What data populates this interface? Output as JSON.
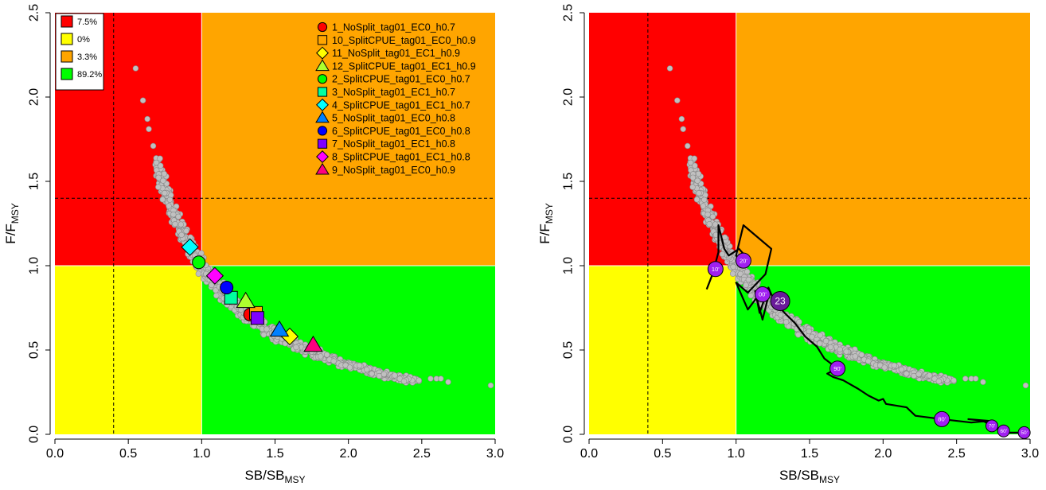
{
  "chart_data": [
    {
      "type": "scatter",
      "panel": "left",
      "xlabel": "SB/SB",
      "xlabel_sub": "MSY",
      "ylabel": "F/F",
      "ylabel_sub": "MSY",
      "xlim": [
        0,
        3.0
      ],
      "ylim": [
        0,
        2.5
      ],
      "xticks": [
        "0.0",
        "0.5",
        "1.0",
        "1.5",
        "2.0",
        "2.5",
        "3.0"
      ],
      "yticks": [
        "0.0",
        "0.5",
        "1.0",
        "1.5",
        "2.0",
        "2.5"
      ],
      "zones": [
        {
          "color": "#ff0000",
          "x": [
            0,
            1
          ],
          "y": [
            1,
            2.5
          ]
        },
        {
          "color": "#ffa500",
          "x": [
            1,
            3
          ],
          "y": [
            1,
            2.5
          ]
        },
        {
          "color": "#ffff00",
          "x": [
            0,
            1
          ],
          "y": [
            0,
            1
          ]
        },
        {
          "color": "#00ff00",
          "x": [
            1,
            3
          ],
          "y": [
            0,
            1
          ]
        }
      ],
      "reference_lines": {
        "vertical": 0.4,
        "horizontal": 1.4
      },
      "zone_legend": [
        {
          "label": "7.5%",
          "color": "#ff0000"
        },
        {
          "label": "0%",
          "color": "#ffff00"
        },
        {
          "label": "3.3%",
          "color": "#ffa500"
        },
        {
          "label": "89.2%",
          "color": "#00ff00"
        }
      ],
      "cloud_sparse_points": [
        [
          0.55,
          2.17
        ],
        [
          0.6,
          1.98
        ],
        [
          0.63,
          1.87
        ],
        [
          0.64,
          1.81
        ],
        [
          0.67,
          1.71
        ],
        [
          2.56,
          0.33
        ],
        [
          2.6,
          0.33
        ],
        [
          2.63,
          0.33
        ],
        [
          2.68,
          0.31
        ],
        [
          2.97,
          0.29
        ]
      ],
      "series": [
        {
          "name": "1_NoSplit_tag01_EC0_h0.7",
          "shape": "circle",
          "color": "#ff0000",
          "x": 1.33,
          "y": 0.71
        },
        {
          "name": "10_SplitCPUE_tag01_EC0_h0.9",
          "shape": "square",
          "color": "#ffa500",
          "x": 1.37,
          "y": 0.72
        },
        {
          "name": "11_NoSplit_tag01_EC1_h0.9",
          "shape": "diamond",
          "color": "#ffff00",
          "x": 1.6,
          "y": 0.58
        },
        {
          "name": "12_SplitCPUE_tag01_EC1_h0.9",
          "shape": "triangle",
          "color": "#adff2f",
          "x": 1.3,
          "y": 0.79
        },
        {
          "name": "2_SplitCPUE_tag01_EC0_h0.7",
          "shape": "circle",
          "color": "#00ff00",
          "x": 0.98,
          "y": 1.02
        },
        {
          "name": "3_NoSplit_tag01_EC1_h0.7",
          "shape": "square",
          "color": "#00ffa0",
          "x": 1.2,
          "y": 0.81
        },
        {
          "name": "4_SplitCPUE_tag01_EC1_h0.7",
          "shape": "diamond",
          "color": "#00ffff",
          "x": 0.92,
          "y": 1.11
        },
        {
          "name": "5_NoSplit_tag01_EC0_h0.8",
          "shape": "triangle",
          "color": "#0080ff",
          "x": 1.53,
          "y": 0.62
        },
        {
          "name": "6_SplitCPUE_tag01_EC0_h0.8",
          "shape": "circle",
          "color": "#0000ff",
          "x": 1.17,
          "y": 0.87
        },
        {
          "name": "7_NoSplit_tag01_EC1_h0.8",
          "shape": "square",
          "color": "#7f00ff",
          "x": 1.38,
          "y": 0.69
        },
        {
          "name": "8_SplitCPUE_tag01_EC1_h0.8",
          "shape": "diamond",
          "color": "#ff00ff",
          "x": 1.09,
          "y": 0.94
        },
        {
          "name": "9_NoSplit_tag01_EC0_h0.9",
          "shape": "triangle",
          "color": "#ff0080",
          "x": 1.76,
          "y": 0.53
        }
      ]
    },
    {
      "type": "line",
      "panel": "right",
      "xlabel": "SB/SB",
      "xlabel_sub": "MSY",
      "ylabel": "F/F",
      "ylabel_sub": "MSY",
      "xlim": [
        0,
        3.0
      ],
      "ylim": [
        0,
        2.5
      ],
      "xticks": [
        "0.0",
        "0.5",
        "1.0",
        "1.5",
        "2.0",
        "2.5",
        "3.0"
      ],
      "yticks": [
        "0.0",
        "0.5",
        "1.0",
        "1.5",
        "2.0",
        "2.5"
      ],
      "zones": [
        {
          "color": "#ff0000",
          "x": [
            0,
            1
          ],
          "y": [
            1,
            2.5
          ]
        },
        {
          "color": "#ffa500",
          "x": [
            1,
            3
          ],
          "y": [
            1,
            2.5
          ]
        },
        {
          "color": "#ffff00",
          "x": [
            0,
            1
          ],
          "y": [
            0,
            1
          ]
        },
        {
          "color": "#00ff00",
          "x": [
            1,
            3
          ],
          "y": [
            0,
            1
          ]
        }
      ],
      "reference_lines": {
        "vertical": 0.4,
        "horizontal": 1.4
      },
      "cloud_sparse_points": [
        [
          0.55,
          2.17
        ],
        [
          0.6,
          1.98
        ],
        [
          0.63,
          1.87
        ],
        [
          0.64,
          1.81
        ],
        [
          0.67,
          1.71
        ],
        [
          2.56,
          0.33
        ],
        [
          2.6,
          0.33
        ],
        [
          2.63,
          0.33
        ],
        [
          2.68,
          0.31
        ],
        [
          2.97,
          0.29
        ]
      ],
      "trajectory": [
        [
          2.96,
          0.01
        ],
        [
          2.86,
          0.01
        ],
        [
          2.82,
          0.02
        ],
        [
          2.74,
          0.05
        ],
        [
          2.68,
          0.08
        ],
        [
          2.58,
          0.09
        ],
        [
          2.72,
          0.08
        ],
        [
          2.6,
          0.07
        ],
        [
          2.4,
          0.09
        ],
        [
          2.22,
          0.11
        ],
        [
          2.16,
          0.16
        ],
        [
          2.02,
          0.18
        ],
        [
          2.0,
          0.21
        ],
        [
          1.97,
          0.2
        ],
        [
          1.9,
          0.23
        ],
        [
          1.83,
          0.27
        ],
        [
          1.77,
          0.3
        ],
        [
          1.73,
          0.32
        ],
        [
          1.66,
          0.34
        ],
        [
          1.62,
          0.36
        ],
        [
          1.69,
          0.39
        ],
        [
          1.6,
          0.45
        ],
        [
          1.55,
          0.52
        ],
        [
          1.47,
          0.58
        ],
        [
          1.4,
          0.66
        ],
        [
          1.33,
          0.72
        ],
        [
          1.26,
          0.79
        ],
        [
          1.22,
          0.87
        ],
        [
          1.16,
          0.72
        ],
        [
          1.13,
          0.85
        ],
        [
          1.22,
          0.82
        ],
        [
          1.18,
          0.68
        ],
        [
          1.14,
          0.81
        ],
        [
          1.08,
          0.74
        ],
        [
          1.05,
          0.8
        ],
        [
          1.0,
          0.9
        ],
        [
          1.08,
          0.84
        ],
        [
          1.2,
          0.95
        ],
        [
          1.24,
          1.1
        ],
        [
          1.05,
          1.24
        ],
        [
          1.0,
          1.06
        ],
        [
          1.03,
          1.02
        ],
        [
          1.07,
          1.05
        ],
        [
          1.02,
          1.1
        ],
        [
          0.95,
          1.06
        ],
        [
          0.92,
          1.1
        ],
        [
          0.88,
          1.24
        ],
        [
          0.88,
          1.08
        ],
        [
          0.84,
          0.95
        ],
        [
          0.8,
          0.86
        ]
      ],
      "year_labels": [
        {
          "label": "50'",
          "x": 2.96,
          "y": 0.01,
          "size": "small"
        },
        {
          "label": "60'",
          "x": 2.82,
          "y": 0.02,
          "size": "small"
        },
        {
          "label": "70'",
          "x": 2.74,
          "y": 0.05,
          "size": "small"
        },
        {
          "label": "80'",
          "x": 2.4,
          "y": 0.09,
          "size": "medium"
        },
        {
          "label": "90'",
          "x": 1.69,
          "y": 0.39,
          "size": "medium"
        },
        {
          "label": "00'",
          "x": 1.18,
          "y": 0.83,
          "size": "medium"
        },
        {
          "label": "10'",
          "x": 0.86,
          "y": 0.98,
          "size": "medium"
        },
        {
          "label": "20'",
          "x": 1.05,
          "y": 1.03,
          "size": "medium"
        },
        {
          "label": "23",
          "x": 1.3,
          "y": 0.79,
          "size": "large"
        }
      ],
      "marker_color": "#a020f0"
    }
  ]
}
